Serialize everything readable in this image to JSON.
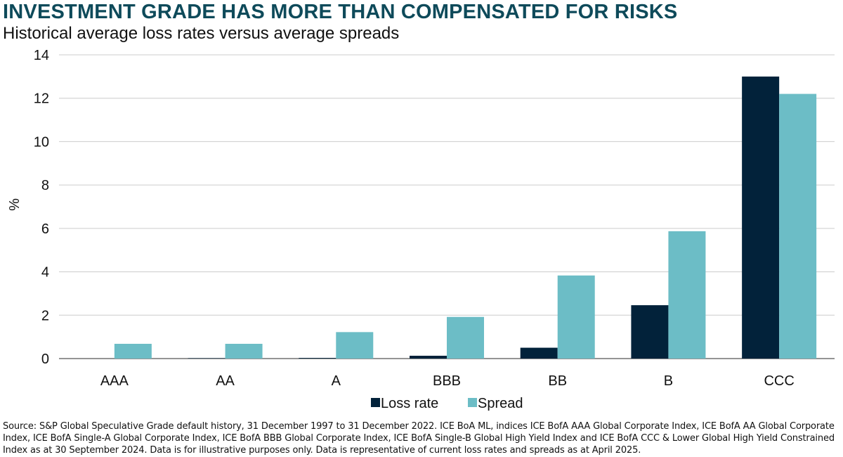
{
  "title": "INVESTMENT GRADE HAS MORE THAN COMPENSATED FOR RISKS",
  "subtitle": "Historical average loss rates versus average spreads",
  "source": "Source: S&P Global Speculative Grade default history, 31 December 1997 to 31 December 2022. ICE BoA ML, indices ICE BofA AAA Global Corporate Index, ICE BofA AA Global Corporate Index, ICE BofA Single-A Global Corporate Index, ICE BofA BBB Global Corporate Index, ICE BofA Single-B Global High Yield Index and ICE BofA CCC & Lower Global High Yield Constrained Index as at 30 September 2024. Data is for illustrative purposes only. Data is representative of current loss rates and spreads as at April 2025.",
  "colors": {
    "loss_rate": "#02223a",
    "spread": "#6cbdc6",
    "grid": "#cccccc"
  },
  "chart_data": {
    "type": "bar",
    "categories": [
      "AAA",
      "AA",
      "A",
      "BBB",
      "BB",
      "B",
      "CCC"
    ],
    "series": [
      {
        "name": "Loss rate",
        "values": [
          0,
          0.02,
          0.03,
          0.13,
          0.5,
          2.46,
          13.0
        ]
      },
      {
        "name": "Spread",
        "values": [
          0.68,
          0.68,
          1.22,
          1.92,
          3.83,
          5.87,
          12.2
        ]
      }
    ],
    "ylabel": "%",
    "ylim": [
      0,
      14
    ],
    "yticks": [
      0,
      2,
      4,
      6,
      8,
      10,
      12,
      14
    ],
    "grid": true,
    "legend": "bottom"
  }
}
